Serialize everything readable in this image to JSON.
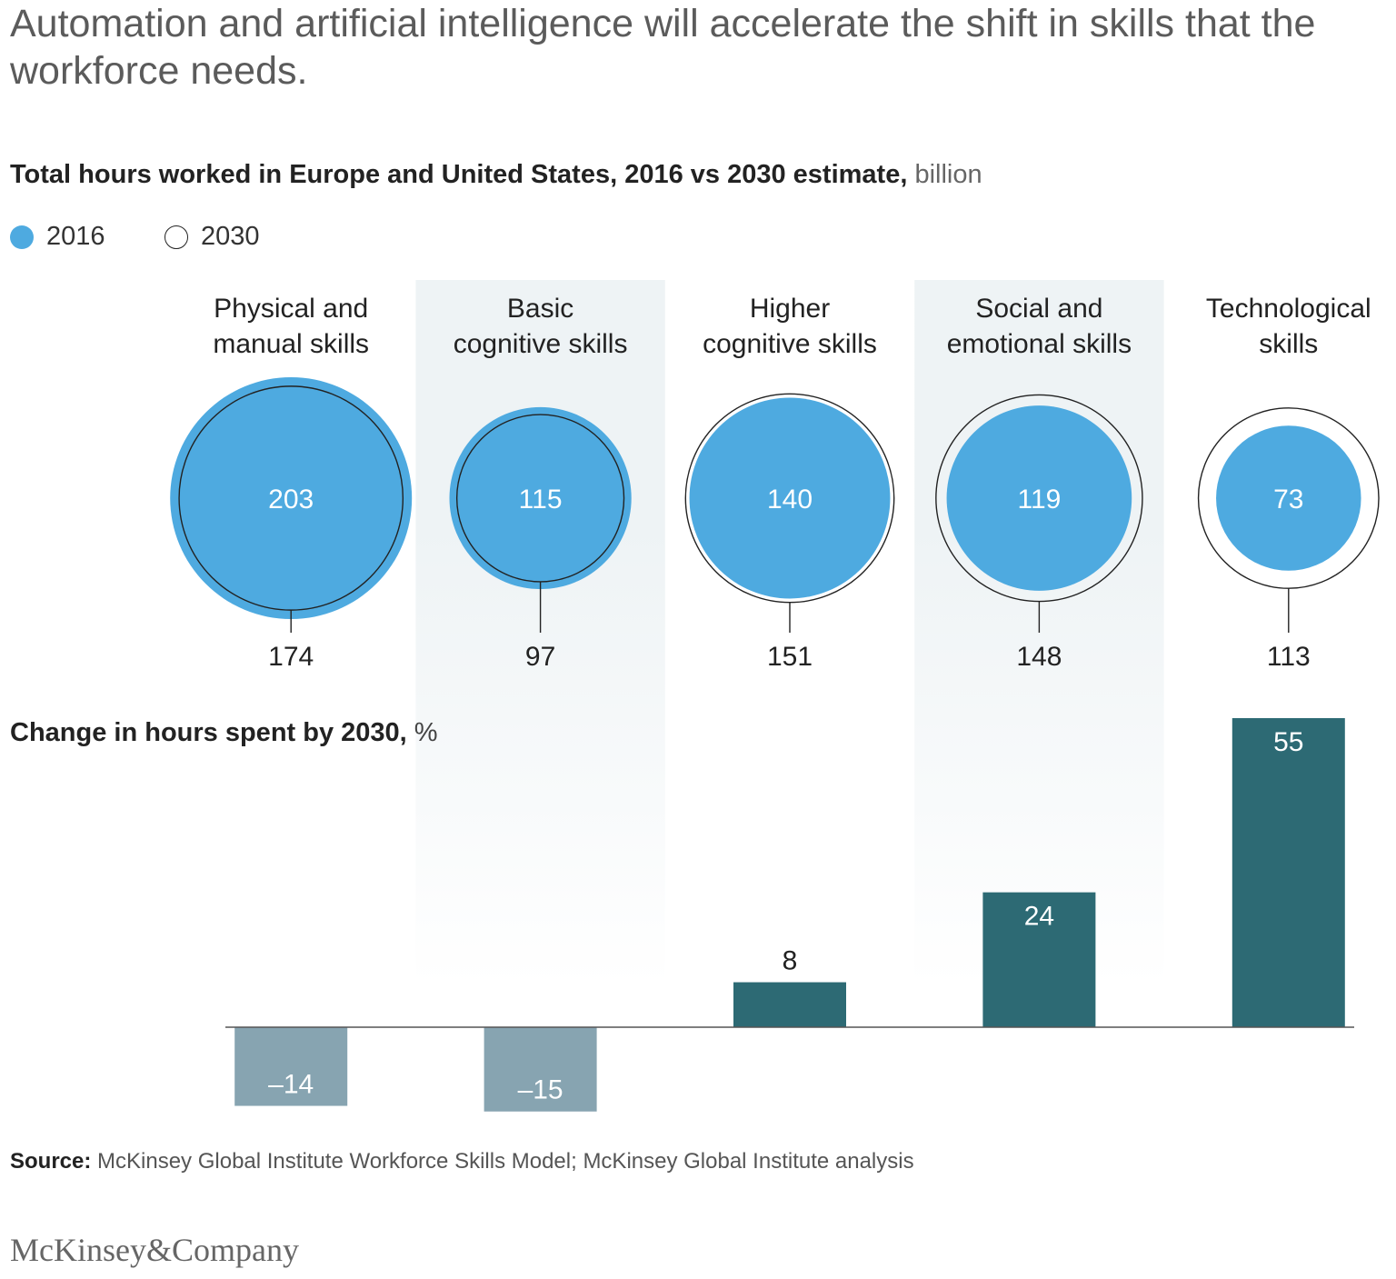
{
  "headline": "Automation and artificial intelligence will accelerate the shift in skills that the workforce needs.",
  "subtitle": {
    "main": "Total hours worked in Europe and United States, 2016 vs 2030 estimate,",
    "unit": " billion"
  },
  "legend": {
    "items": [
      {
        "label": "2016",
        "color": "#4eaae0"
      },
      {
        "label": "2030",
        "color": "#ffffff"
      }
    ]
  },
  "change_axis_label": {
    "main": "Change in hours spent by 2030,",
    "unit": " %"
  },
  "source": {
    "label": "Source:",
    "text": " McKinsey Global Institute Workforce Skills Model; McKinsey Global Institute analysis"
  },
  "brand": "McKinsey&Company",
  "chart_data": {
    "type": "bar",
    "title": "Total hours worked in Europe and United States, 2016 vs 2030 estimate, billion",
    "categories": [
      [
        "Physical and",
        "manual skills"
      ],
      [
        "Basic",
        "cognitive skills"
      ],
      [
        "Higher",
        "cognitive skills"
      ],
      [
        "Social and",
        "emotional skills"
      ],
      [
        "Technological",
        "skills"
      ]
    ],
    "series": [
      {
        "name": "2016",
        "unit": "billion hours",
        "values": [
          203,
          115,
          140,
          119,
          73
        ],
        "color": "#4eaae0"
      },
      {
        "name": "2030",
        "unit": "billion hours",
        "values": [
          174,
          97,
          151,
          148,
          113
        ],
        "color": "#ffffff"
      },
      {
        "name": "Change in hours spent by 2030",
        "unit": "%",
        "values": [
          -14,
          -15,
          8,
          24,
          55
        ],
        "labels": [
          "–14",
          "–15",
          "8",
          "24",
          "55"
        ]
      }
    ],
    "colors": {
      "positive_bar": "#2d6a74",
      "negative_bar": "#87a4b1",
      "highlight_band": "#eef3f5",
      "outline": "#222222"
    },
    "xlabel": "",
    "ylabel": "Change in hours spent by 2030, %",
    "ylim": [
      -15,
      55
    ]
  }
}
